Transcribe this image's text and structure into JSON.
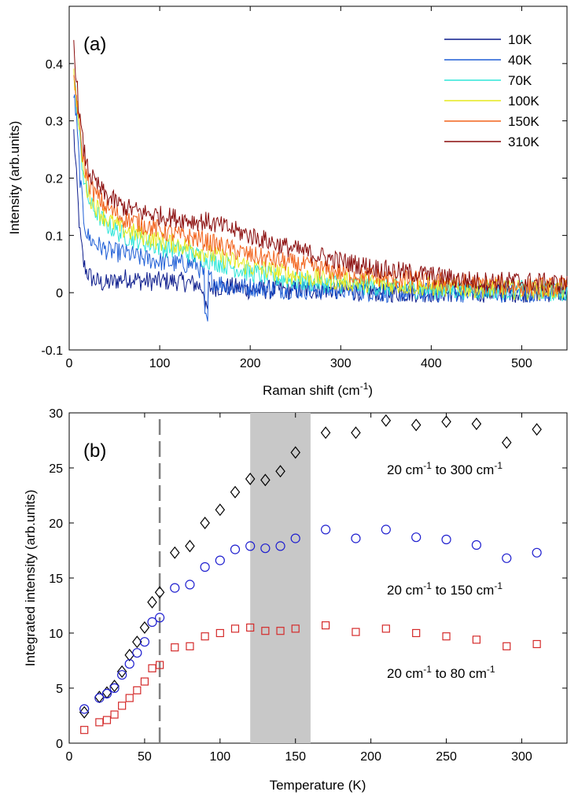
{
  "chart_data": [
    {
      "type": "line",
      "panel_label": "(a)",
      "xlabel": "Raman shift (cm",
      "xlabel_sup": "-1",
      "xlabel_tail": ")",
      "ylabel": "Intensity (arb.units)",
      "xlim": [
        0,
        550
      ],
      "ylim": [
        -0.1,
        0.5
      ],
      "xticks": [
        0,
        100,
        200,
        300,
        400,
        500
      ],
      "yticks": [
        -0.1,
        0,
        0.1,
        0.2,
        0.3,
        0.4
      ],
      "ytick_labels": [
        "-0.1",
        "0",
        "0.1",
        "0.2",
        "0.3",
        "0.4"
      ],
      "legend_position": "top-right",
      "series": [
        {
          "name": "10K",
          "color": "#0c1c8c",
          "x": [
            5,
            8,
            12,
            16,
            20,
            25,
            30,
            40,
            50,
            60,
            70,
            80,
            100,
            120,
            140,
            150,
            160,
            180,
            200,
            250,
            300,
            350,
            400,
            450,
            500,
            550
          ],
          "values": [
            0.28,
            0.2,
            0.1,
            0.05,
            0.035,
            0.025,
            0.02,
            0.015,
            0.02,
            0.025,
            0.025,
            0.02,
            0.02,
            0.02,
            0.015,
            0.005,
            0.01,
            0.01,
            0.005,
            0.005,
            0.005,
            0.0,
            0.0,
            0.0,
            0.0,
            0.0
          ]
        },
        {
          "name": "40K",
          "color": "#1e5ed6",
          "x": [
            5,
            8,
            12,
            16,
            20,
            25,
            30,
            40,
            50,
            60,
            70,
            80,
            100,
            120,
            140,
            150,
            160,
            180,
            200,
            250,
            300,
            350,
            400,
            450,
            500,
            550
          ],
          "values": [
            0.35,
            0.3,
            0.2,
            0.13,
            0.1,
            0.09,
            0.085,
            0.075,
            0.07,
            0.07,
            0.065,
            0.06,
            0.055,
            0.05,
            0.05,
            0.03,
            0.02,
            0.01,
            0.01,
            0.005,
            0.005,
            0.0,
            0.0,
            0.0,
            0.0,
            0.0
          ]
        },
        {
          "name": "70K",
          "color": "#2ee6d8",
          "x": [
            5,
            8,
            12,
            16,
            20,
            25,
            30,
            40,
            50,
            60,
            70,
            80,
            100,
            120,
            140,
            150,
            160,
            180,
            200,
            250,
            300,
            350,
            400,
            450,
            500,
            550
          ],
          "values": [
            0.38,
            0.33,
            0.26,
            0.2,
            0.17,
            0.15,
            0.14,
            0.12,
            0.11,
            0.1,
            0.095,
            0.09,
            0.08,
            0.075,
            0.065,
            0.06,
            0.055,
            0.045,
            0.035,
            0.02,
            0.015,
            0.01,
            0.005,
            0.005,
            0.005,
            0.0
          ]
        },
        {
          "name": "100K",
          "color": "#e6e81c",
          "x": [
            5,
            8,
            12,
            16,
            20,
            25,
            30,
            40,
            50,
            60,
            70,
            80,
            100,
            120,
            140,
            150,
            160,
            180,
            200,
            250,
            300,
            350,
            400,
            450,
            500,
            550
          ],
          "values": [
            0.38,
            0.34,
            0.27,
            0.21,
            0.18,
            0.16,
            0.15,
            0.13,
            0.12,
            0.11,
            0.105,
            0.1,
            0.09,
            0.085,
            0.075,
            0.07,
            0.065,
            0.055,
            0.045,
            0.03,
            0.02,
            0.015,
            0.01,
            0.008,
            0.005,
            0.005
          ]
        },
        {
          "name": "150K",
          "color": "#f2631c",
          "x": [
            5,
            8,
            12,
            16,
            20,
            25,
            30,
            40,
            50,
            60,
            70,
            80,
            100,
            120,
            140,
            150,
            160,
            180,
            200,
            250,
            300,
            350,
            400,
            450,
            500,
            550
          ],
          "values": [
            0.38,
            0.34,
            0.28,
            0.23,
            0.2,
            0.18,
            0.17,
            0.15,
            0.14,
            0.13,
            0.125,
            0.12,
            0.11,
            0.1,
            0.095,
            0.09,
            0.085,
            0.075,
            0.065,
            0.05,
            0.035,
            0.025,
            0.02,
            0.015,
            0.01,
            0.01
          ]
        },
        {
          "name": "310K",
          "color": "#8a0b0b",
          "x": [
            5,
            8,
            12,
            16,
            20,
            25,
            30,
            40,
            50,
            60,
            70,
            80,
            100,
            120,
            140,
            150,
            160,
            180,
            200,
            250,
            300,
            350,
            400,
            450,
            500,
            550
          ],
          "values": [
            0.44,
            0.37,
            0.3,
            0.25,
            0.22,
            0.2,
            0.19,
            0.17,
            0.16,
            0.15,
            0.145,
            0.14,
            0.135,
            0.13,
            0.125,
            0.125,
            0.12,
            0.11,
            0.1,
            0.075,
            0.055,
            0.04,
            0.03,
            0.02,
            0.02,
            0.015
          ]
        }
      ]
    },
    {
      "type": "scatter",
      "panel_label": "(b)",
      "xlabel": "Temperature (K)",
      "ylabel": "Integrated intensity (arb.units)",
      "xlim": [
        0,
        330
      ],
      "ylim": [
        0,
        30
      ],
      "xticks": [
        0,
        50,
        100,
        150,
        200,
        250,
        300
      ],
      "yticks": [
        0,
        5,
        10,
        15,
        20,
        25,
        30
      ],
      "dashed_line_x": 60,
      "shaded_region_x": [
        120,
        160
      ],
      "series": [
        {
          "name": "20 cm-1 to 300 cm-1",
          "label_pre": "20 cm",
          "label_mid": " to 300 cm",
          "label_sup": "-1",
          "marker": "diamond",
          "color": "#000000",
          "x": [
            10,
            20,
            25,
            30,
            35,
            40,
            45,
            50,
            55,
            60,
            70,
            80,
            90,
            100,
            110,
            120,
            130,
            140,
            150,
            170,
            190,
            210,
            230,
            250,
            270,
            290,
            310
          ],
          "values": [
            2.8,
            4.2,
            4.6,
            5.2,
            6.5,
            8.0,
            9.2,
            10.5,
            12.8,
            13.7,
            17.3,
            17.9,
            20.0,
            21.2,
            22.8,
            24.0,
            23.9,
            24.7,
            26.4,
            28.2,
            28.2,
            29.3,
            28.9,
            29.2,
            29.0,
            27.3,
            28.5
          ]
        },
        {
          "name": "20 cm-1 to 150 cm-1",
          "label_pre": "20 cm",
          "label_mid": " to 150 cm",
          "label_sup": "-1",
          "marker": "circle",
          "color": "#1f1fcf",
          "x": [
            10,
            20,
            25,
            30,
            35,
            40,
            45,
            50,
            55,
            60,
            70,
            80,
            90,
            100,
            110,
            120,
            130,
            140,
            150,
            170,
            190,
            210,
            230,
            250,
            270,
            290,
            310
          ],
          "values": [
            3.1,
            4.1,
            4.5,
            5.0,
            6.2,
            7.2,
            8.2,
            9.2,
            11.0,
            11.4,
            14.1,
            14.4,
            16.0,
            16.6,
            17.6,
            17.9,
            17.7,
            17.9,
            18.6,
            19.4,
            18.6,
            19.4,
            18.7,
            18.5,
            18.0,
            16.8,
            17.3
          ]
        },
        {
          "name": "20 cm-1 to 80 cm-1",
          "label_pre": "20 cm",
          "label_mid": " to 80 cm",
          "label_sup": "-1",
          "marker": "square",
          "color": "#d42a2a",
          "x": [
            10,
            20,
            25,
            30,
            35,
            40,
            45,
            50,
            55,
            60,
            70,
            80,
            90,
            100,
            110,
            120,
            130,
            140,
            150,
            170,
            190,
            210,
            230,
            250,
            270,
            290,
            310
          ],
          "values": [
            1.2,
            1.9,
            2.1,
            2.6,
            3.4,
            4.1,
            4.8,
            5.6,
            6.8,
            7.1,
            8.7,
            8.8,
            9.7,
            10.0,
            10.4,
            10.5,
            10.2,
            10.2,
            10.4,
            10.7,
            10.1,
            10.4,
            10.0,
            9.7,
            9.4,
            8.8,
            9.0
          ]
        }
      ]
    }
  ]
}
